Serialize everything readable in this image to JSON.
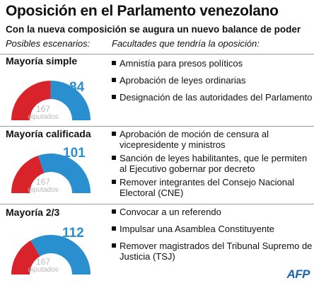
{
  "title": "Oposición en el Parlamento venezolano",
  "subtitle": "Con la nueva composición se augura un nuevo balance de poder",
  "headers": {
    "left": "Posibles escenarios:",
    "right": "Facultades que tendría la oposición:"
  },
  "colors": {
    "opposition": "#2a8fcf",
    "government": "#d8232a",
    "total_text": "#b9b9b9"
  },
  "total_seats": 167,
  "scenarios": [
    {
      "label": "Mayoría simple",
      "seats": "84",
      "seats_fraction": 0.503,
      "total": "167",
      "total_unit": "diputados",
      "items": [
        "Amnistía para presos políticos",
        "Aprobación de leyes ordinarias",
        "Designación de las autoridades del Parlamento"
      ]
    },
    {
      "label": "Mayoría calificada",
      "seats": "101",
      "seats_fraction": 0.605,
      "total": "167",
      "total_unit": "diputados",
      "items": [
        "Aprobación de moción de censura al vicepresidente y ministros",
        "Sanción de leyes habilitantes, que le permiten al Ejecutivo gobernar por decreto",
        "Remover integrantes del Consejo Nacional Electoral (CNE)"
      ]
    },
    {
      "label": "Mayoría 2/3",
      "seats": "112",
      "seats_fraction": 0.671,
      "total": "167",
      "total_unit": "diputados",
      "items": [
        "Convocar a un referendo",
        "Impulsar una Asamblea Constituyente",
        "Remover magistrados del Tribunal Supremo de Justicia (TSJ)"
      ]
    }
  ],
  "logo": "AFP"
}
